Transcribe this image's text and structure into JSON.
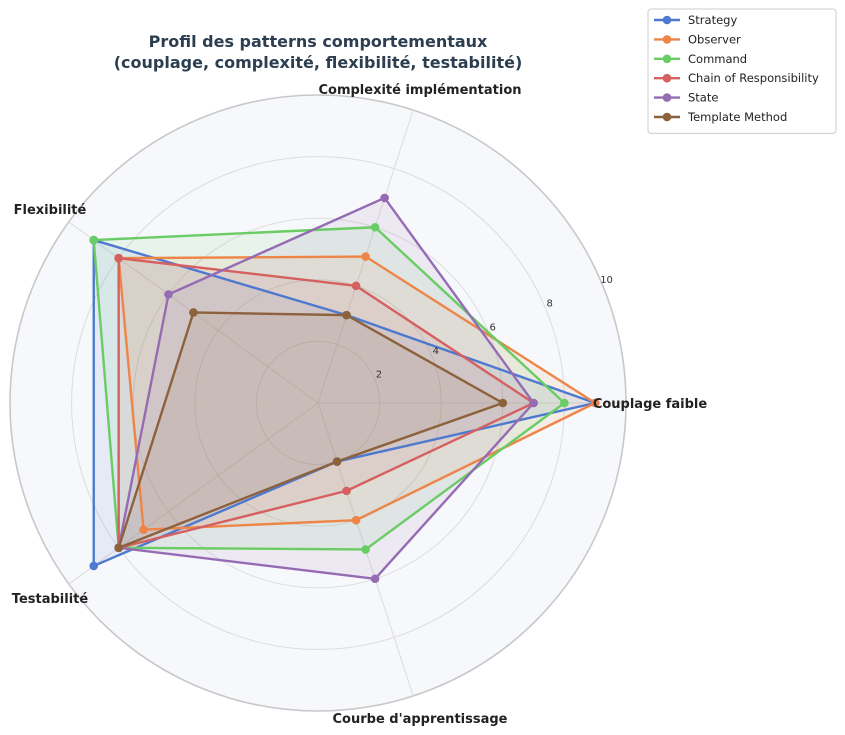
{
  "chart_data": {
    "type": "radar",
    "title": [
      "Profil des patterns comportementaux",
      "(couplage, complexité, flexibilité, testabilité)"
    ],
    "axes": [
      "Couplage faible",
      "Complexité implémentation",
      "Flexibilité",
      "Testabilité",
      "Courbe d'apprentissage"
    ],
    "rmax": 10,
    "rticks": [
      2,
      4,
      6,
      8,
      10
    ],
    "grid": true,
    "legend_position": "top-right",
    "series": [
      {
        "name": "Strategy",
        "color": "#4e79cf",
        "values": [
          9,
          3,
          9,
          9,
          2
        ]
      },
      {
        "name": "Observer",
        "color": "#ee8548",
        "values": [
          9,
          5,
          8,
          7,
          4
        ]
      },
      {
        "name": "Command",
        "color": "#6acc64",
        "values": [
          8,
          6,
          9,
          8,
          5
        ]
      },
      {
        "name": "Chain of Responsibility",
        "color": "#d65f5f",
        "values": [
          7,
          4,
          8,
          8,
          3
        ]
      },
      {
        "name": "State",
        "color": "#956cb4",
        "values": [
          7,
          7,
          6,
          8,
          6
        ]
      },
      {
        "name": "Template Method",
        "color": "#8c613c",
        "values": [
          6,
          3,
          5,
          8,
          2
        ]
      }
    ]
  }
}
